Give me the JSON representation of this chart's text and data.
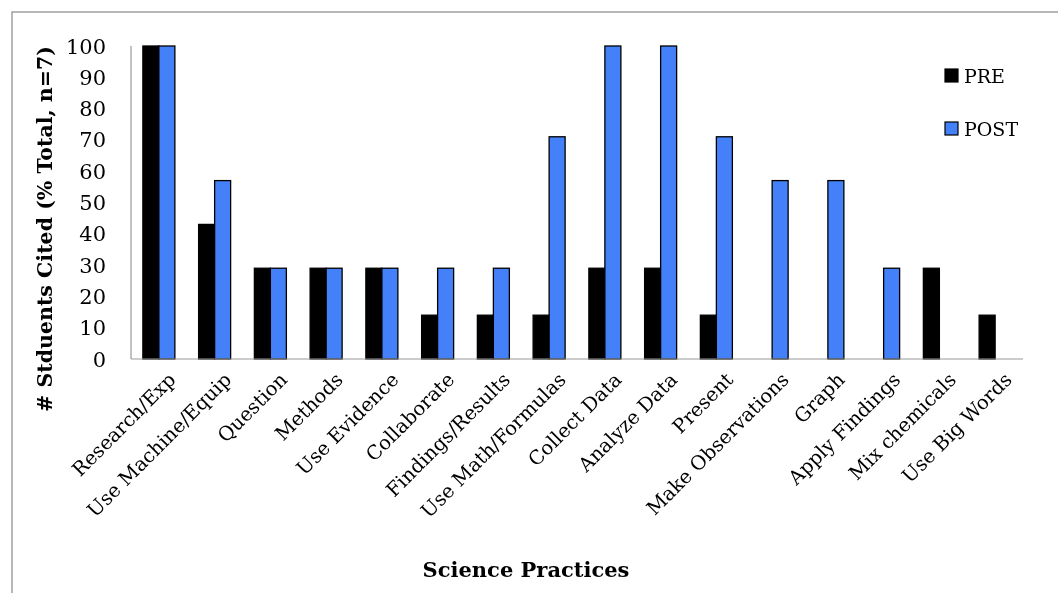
{
  "chart_data": {
    "type": "bar",
    "xlabel": "Science Practices",
    "ylabel": "# Stduents Cited (% Total, n=7)",
    "categories": [
      "Research/Exp",
      "Use Machine/Equip",
      "Question",
      "Methods",
      "Use Evidence",
      "Collaborate",
      "Findings/Results",
      "Use Math/Formulas",
      "Collect Data",
      "Analyze Data",
      "Present",
      "Make Observations",
      "Graph",
      "Apply Findings",
      "Mix chemicals",
      "Use Big Words"
    ],
    "series": [
      {
        "name": "PRE",
        "color": "#000000",
        "values": [
          100,
          43,
          29,
          29,
          29,
          14,
          14,
          14,
          29,
          29,
          14,
          null,
          null,
          null,
          29,
          14
        ]
      },
      {
        "name": "POST",
        "color": "#4481f8",
        "values": [
          100,
          57,
          29,
          29,
          29,
          29,
          29,
          71,
          100,
          100,
          71,
          57,
          57,
          29,
          null,
          null
        ]
      }
    ],
    "ylim": [
      0,
      100
    ],
    "yticks": [
      0,
      10,
      20,
      30,
      40,
      50,
      60,
      70,
      80,
      90,
      100
    ],
    "grid": false,
    "legend": "top right"
  }
}
